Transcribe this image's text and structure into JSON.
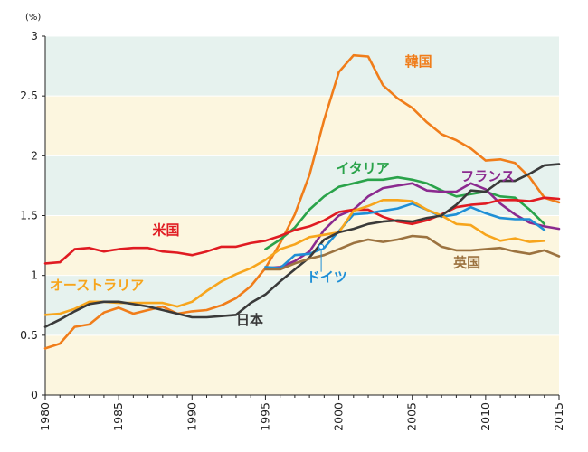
{
  "chart_data": {
    "type": "line",
    "unit_label": "(%)",
    "xlim": [
      1980,
      2015
    ],
    "ylim": [
      0,
      3
    ],
    "x_ticks": [
      1980,
      1985,
      1990,
      1995,
      2000,
      2005,
      2010,
      2015
    ],
    "y_ticks": [
      0,
      0.5,
      1,
      1.5,
      2,
      2.5,
      3
    ],
    "y_tick_labels": [
      "0",
      "0.5",
      "1",
      "1.5",
      "2",
      "2.5",
      "3"
    ],
    "bands": [
      {
        "from": 0,
        "to": 0.5,
        "color": "#fcf6df"
      },
      {
        "from": 0.5,
        "to": 1,
        "color": "#e6f2ee"
      },
      {
        "from": 1,
        "to": 1.5,
        "color": "#fcf6df"
      },
      {
        "from": 1.5,
        "to": 2,
        "color": "#e6f2ee"
      },
      {
        "from": 2,
        "to": 2.5,
        "color": "#fcf6df"
      },
      {
        "from": 2.5,
        "to": 3,
        "color": "#e6f2ee"
      }
    ],
    "series": [
      {
        "name": "韓国",
        "color": "#f07d1a",
        "label_at": [
          2004.5,
          2.75
        ],
        "points": [
          [
            1980,
            0.39
          ],
          [
            1981,
            0.43
          ],
          [
            1982,
            0.57
          ],
          [
            1983,
            0.59
          ],
          [
            1984,
            0.69
          ],
          [
            1985,
            0.73
          ],
          [
            1986,
            0.68
          ],
          [
            1987,
            0.71
          ],
          [
            1988,
            0.74
          ],
          [
            1989,
            0.68
          ],
          [
            1990,
            0.7
          ],
          [
            1991,
            0.71
          ],
          [
            1992,
            0.75
          ],
          [
            1993,
            0.81
          ],
          [
            1994,
            0.91
          ],
          [
            1995,
            1.06
          ],
          [
            1996,
            1.27
          ],
          [
            1997,
            1.51
          ],
          [
            1998,
            1.84
          ],
          [
            1999,
            2.3
          ],
          [
            2000,
            2.7
          ],
          [
            2001,
            2.84
          ],
          [
            2002,
            2.83
          ],
          [
            2003,
            2.59
          ],
          [
            2004,
            2.48
          ],
          [
            2005,
            2.4
          ],
          [
            2006,
            2.28
          ],
          [
            2007,
            2.18
          ],
          [
            2008,
            2.13
          ],
          [
            2009,
            2.06
          ],
          [
            2010,
            1.96
          ],
          [
            2011,
            1.97
          ],
          [
            2012,
            1.94
          ],
          [
            2013,
            1.82
          ],
          [
            2014,
            1.65
          ],
          [
            2015,
            1.61
          ]
        ]
      },
      {
        "name": "イタリア",
        "color": "#2aa34a",
        "label_at": [
          1999.8,
          1.86
        ],
        "points": [
          [
            1995,
            1.22
          ],
          [
            1996,
            1.3
          ],
          [
            1997,
            1.4
          ],
          [
            1998,
            1.55
          ],
          [
            1999,
            1.66
          ],
          [
            2000,
            1.74
          ],
          [
            2001,
            1.77
          ],
          [
            2002,
            1.8
          ],
          [
            2003,
            1.8
          ],
          [
            2004,
            1.82
          ],
          [
            2005,
            1.8
          ],
          [
            2006,
            1.77
          ],
          [
            2007,
            1.71
          ],
          [
            2008,
            1.66
          ],
          [
            2009,
            1.68
          ],
          [
            2010,
            1.7
          ],
          [
            2011,
            1.66
          ],
          [
            2012,
            1.65
          ],
          [
            2013,
            1.55
          ],
          [
            2014,
            1.43
          ]
        ]
      },
      {
        "name": "フランス",
        "color": "#8b2a8f",
        "label_at": [
          2008.3,
          1.79
        ],
        "points": [
          [
            1995,
            1.06
          ],
          [
            1996,
            1.07
          ],
          [
            1997,
            1.12
          ],
          [
            1998,
            1.2
          ],
          [
            1999,
            1.38
          ],
          [
            2000,
            1.5
          ],
          [
            2001,
            1.55
          ],
          [
            2002,
            1.66
          ],
          [
            2003,
            1.73
          ],
          [
            2004,
            1.75
          ],
          [
            2005,
            1.77
          ],
          [
            2006,
            1.71
          ],
          [
            2007,
            1.7
          ],
          [
            2008,
            1.7
          ],
          [
            2009,
            1.77
          ],
          [
            2010,
            1.72
          ],
          [
            2011,
            1.6
          ],
          [
            2012,
            1.51
          ],
          [
            2013,
            1.44
          ],
          [
            2014,
            1.41
          ],
          [
            2015,
            1.39
          ]
        ]
      },
      {
        "name": "米国",
        "color": "#e01b22",
        "label_at": [
          1987.3,
          1.34
        ],
        "points": [
          [
            1980,
            1.1
          ],
          [
            1981,
            1.11
          ],
          [
            1982,
            1.22
          ],
          [
            1983,
            1.23
          ],
          [
            1984,
            1.2
          ],
          [
            1985,
            1.22
          ],
          [
            1986,
            1.23
          ],
          [
            1987,
            1.23
          ],
          [
            1988,
            1.2
          ],
          [
            1989,
            1.19
          ],
          [
            1990,
            1.17
          ],
          [
            1991,
            1.2
          ],
          [
            1992,
            1.24
          ],
          [
            1993,
            1.24
          ],
          [
            1994,
            1.27
          ],
          [
            1995,
            1.29
          ],
          [
            1996,
            1.33
          ],
          [
            1997,
            1.38
          ],
          [
            1998,
            1.41
          ],
          [
            1999,
            1.46
          ],
          [
            2000,
            1.53
          ],
          [
            2001,
            1.55
          ],
          [
            2002,
            1.55
          ],
          [
            2003,
            1.49
          ],
          [
            2004,
            1.45
          ],
          [
            2005,
            1.43
          ],
          [
            2006,
            1.46
          ],
          [
            2007,
            1.51
          ],
          [
            2008,
            1.57
          ],
          [
            2009,
            1.59
          ],
          [
            2010,
            1.6
          ],
          [
            2011,
            1.63
          ],
          [
            2012,
            1.63
          ],
          [
            2013,
            1.62
          ],
          [
            2014,
            1.65
          ],
          [
            2015,
            1.64
          ]
        ]
      },
      {
        "name": "ドイツ",
        "color": "#1f8fd6",
        "label_at": [
          1997.8,
          0.95
        ],
        "pointer": [
          1998.8,
          1.03,
          1998.8,
          1.24
        ],
        "points": [
          [
            1995,
            1.07
          ],
          [
            1996,
            1.06
          ],
          [
            1997,
            1.17
          ],
          [
            1998,
            1.18
          ],
          [
            1999,
            1.23
          ],
          [
            2000,
            1.37
          ],
          [
            2001,
            1.51
          ],
          [
            2002,
            1.52
          ],
          [
            2003,
            1.54
          ],
          [
            2004,
            1.56
          ],
          [
            2005,
            1.6
          ],
          [
            2006,
            1.55
          ],
          [
            2007,
            1.49
          ],
          [
            2008,
            1.51
          ],
          [
            2009,
            1.57
          ],
          [
            2010,
            1.52
          ],
          [
            2011,
            1.48
          ],
          [
            2012,
            1.47
          ],
          [
            2013,
            1.47
          ],
          [
            2014,
            1.38
          ]
        ]
      },
      {
        "name": "オーストラリア",
        "color": "#f7a51c",
        "label_at": [
          1980.3,
          0.88
        ],
        "points": [
          [
            1980,
            0.67
          ],
          [
            1981,
            0.68
          ],
          [
            1982,
            0.72
          ],
          [
            1983,
            0.78
          ],
          [
            1984,
            0.78
          ],
          [
            1985,
            0.77
          ],
          [
            1986,
            0.77
          ],
          [
            1987,
            0.77
          ],
          [
            1988,
            0.77
          ],
          [
            1989,
            0.74
          ],
          [
            1990,
            0.78
          ],
          [
            1991,
            0.87
          ],
          [
            1992,
            0.95
          ],
          [
            1993,
            1.01
          ],
          [
            1994,
            1.06
          ],
          [
            1995,
            1.13
          ],
          [
            1996,
            1.22
          ],
          [
            1997,
            1.26
          ],
          [
            1998,
            1.32
          ],
          [
            1999,
            1.34
          ],
          [
            2000,
            1.36
          ],
          [
            2001,
            1.54
          ],
          [
            2002,
            1.58
          ],
          [
            2003,
            1.63
          ],
          [
            2004,
            1.63
          ],
          [
            2005,
            1.62
          ],
          [
            2006,
            1.55
          ],
          [
            2007,
            1.5
          ],
          [
            2008,
            1.43
          ],
          [
            2009,
            1.42
          ],
          [
            2010,
            1.34
          ],
          [
            2011,
            1.29
          ],
          [
            2012,
            1.31
          ],
          [
            2013,
            1.28
          ],
          [
            2014,
            1.29
          ]
        ]
      },
      {
        "name": "日本",
        "color": "#3a3a3a",
        "label_at": [
          1993.0,
          0.59
        ],
        "points": [
          [
            1980,
            0.57
          ],
          [
            1981,
            0.63
          ],
          [
            1982,
            0.7
          ],
          [
            1983,
            0.76
          ],
          [
            1984,
            0.78
          ],
          [
            1985,
            0.78
          ],
          [
            1986,
            0.76
          ],
          [
            1987,
            0.74
          ],
          [
            1988,
            0.71
          ],
          [
            1989,
            0.68
          ],
          [
            1990,
            0.65
          ],
          [
            1991,
            0.65
          ],
          [
            1992,
            0.66
          ],
          [
            1993,
            0.67
          ],
          [
            1994,
            0.77
          ],
          [
            1995,
            0.84
          ],
          [
            1996,
            0.95
          ],
          [
            1997,
            1.05
          ],
          [
            1998,
            1.15
          ],
          [
            1999,
            1.3
          ],
          [
            2000,
            1.36
          ],
          [
            2001,
            1.39
          ],
          [
            2002,
            1.43
          ],
          [
            2003,
            1.45
          ],
          [
            2004,
            1.46
          ],
          [
            2005,
            1.45
          ],
          [
            2006,
            1.48
          ],
          [
            2007,
            1.5
          ],
          [
            2008,
            1.59
          ],
          [
            2009,
            1.71
          ],
          [
            2010,
            1.7
          ],
          [
            2011,
            1.79
          ],
          [
            2012,
            1.79
          ],
          [
            2013,
            1.85
          ],
          [
            2014,
            1.92
          ],
          [
            2015,
            1.93
          ]
        ]
      },
      {
        "name": "英国",
        "color": "#9c7340",
        "label_at": [
          2007.8,
          1.07
        ],
        "points": [
          [
            1995,
            1.05
          ],
          [
            1996,
            1.05
          ],
          [
            1997,
            1.1
          ],
          [
            1998,
            1.14
          ],
          [
            1999,
            1.17
          ],
          [
            2000,
            1.22
          ],
          [
            2001,
            1.27
          ],
          [
            2002,
            1.3
          ],
          [
            2003,
            1.28
          ],
          [
            2004,
            1.3
          ],
          [
            2005,
            1.33
          ],
          [
            2006,
            1.32
          ],
          [
            2007,
            1.24
          ],
          [
            2008,
            1.21
          ],
          [
            2009,
            1.21
          ],
          [
            2010,
            1.22
          ],
          [
            2011,
            1.23
          ],
          [
            2012,
            1.2
          ],
          [
            2013,
            1.18
          ],
          [
            2014,
            1.21
          ],
          [
            2015,
            1.16
          ]
        ]
      }
    ]
  }
}
